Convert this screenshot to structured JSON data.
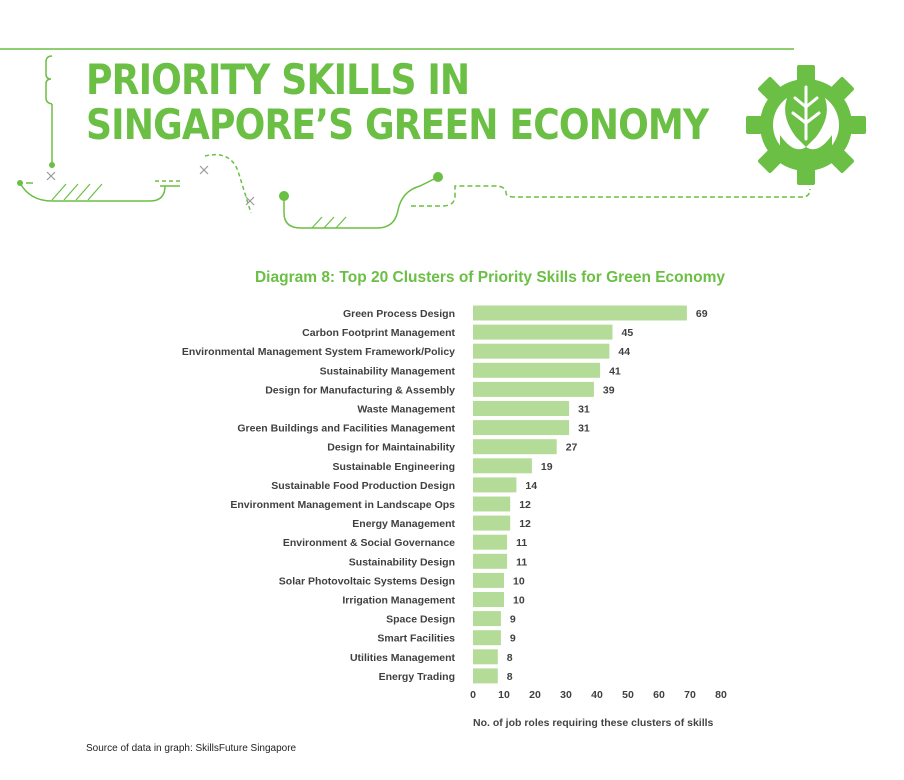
{
  "header": {
    "title_line1": "PRIORITY SKILLS IN",
    "title_line2": "SINGAPORE’S GREEN ECONOMY",
    "logo_icon": "leaf-gear-icon"
  },
  "colors": {
    "brand_green": "#6abf44",
    "bar_fill": "#b5db98",
    "text_dark": "#404040"
  },
  "chart_data": {
    "type": "bar",
    "orientation": "horizontal",
    "title": "Diagram 8: Top 20 Clusters of Priority Skills for Green Economy",
    "xlabel": "No. of job roles requiring these clusters of skills",
    "ylabel": "",
    "xlim": [
      0,
      80
    ],
    "xticks": [
      0,
      10,
      20,
      30,
      40,
      50,
      60,
      70,
      80
    ],
    "grid": false,
    "data_labels": true,
    "categories": [
      "Green Process Design",
      "Carbon Footprint Management",
      "Environmental Management System Framework/Policy",
      "Sustainability Management",
      "Design for Manufacturing & Assembly",
      "Waste Management",
      "Green Buildings and Facilities Management",
      "Design for Maintainability",
      "Sustainable Engineering",
      "Sustainable Food Production Design",
      "Environment Management in Landscape Ops",
      "Energy Management",
      "Environment & Social Governance",
      "Sustainability Design",
      "Solar Photovoltaic Systems Design",
      "Irrigation Management",
      "Space Design",
      "Smart Facilities",
      "Utilities Management",
      "Energy Trading"
    ],
    "values": [
      69,
      45,
      44,
      41,
      39,
      31,
      31,
      27,
      19,
      14,
      12,
      12,
      11,
      11,
      10,
      10,
      9,
      9,
      8,
      8
    ]
  },
  "footer": {
    "source": "Source of data in graph: SkillsFuture Singapore"
  }
}
